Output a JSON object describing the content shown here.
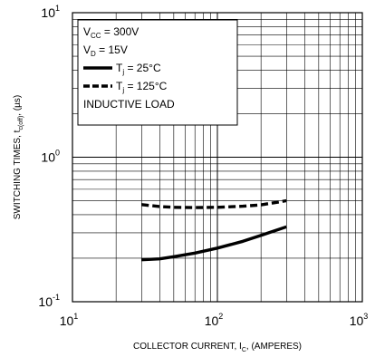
{
  "chart_data": {
    "type": "line",
    "x_scale": "log",
    "y_scale": "log",
    "xlim": [
      10,
      1000
    ],
    "ylim": [
      0.1,
      10
    ],
    "grid": true,
    "legend_placement": "top-left",
    "xlabel": {
      "main": "COLLECTOR CURRENT, I",
      "sub": "C",
      "suffix": ", (AMPERES)"
    },
    "ylabel": {
      "main": "SWITCHING TIMES, t",
      "sub": "c(off)",
      "suffix": ", (µs)"
    },
    "x_ticks": [
      {
        "value": 10,
        "base": "10",
        "exp": "1"
      },
      {
        "value": 100,
        "base": "10",
        "exp": "2"
      },
      {
        "value": 1000,
        "base": "10",
        "exp": "3"
      }
    ],
    "y_ticks": [
      {
        "value": 10,
        "base": "10",
        "exp": "1"
      },
      {
        "value": 1,
        "base": "10",
        "exp": "0"
      },
      {
        "value": 0.1,
        "base": "10",
        "exp": "-1"
      }
    ],
    "legend": {
      "conditions": [
        {
          "main": "V",
          "sub": "CC",
          "rest": " = 300V"
        },
        {
          "main": "V",
          "sub": "D",
          "rest": " = 15V"
        }
      ],
      "series": [
        {
          "main": "T",
          "sub": "j",
          "rest": " = 25°C",
          "style": "solid"
        },
        {
          "main": "T",
          "sub": "j",
          "rest": " = 125°C",
          "style": "dashed"
        }
      ],
      "note": "INDUCTIVE LOAD"
    },
    "series": [
      {
        "style": "solid",
        "color": "#000000",
        "x": [
          30,
          40,
          50,
          70,
          100,
          150,
          200,
          300
        ],
        "y": [
          0.195,
          0.198,
          0.205,
          0.217,
          0.235,
          0.262,
          0.288,
          0.33
        ]
      },
      {
        "style": "dashed",
        "color": "#000000",
        "x": [
          30,
          40,
          50,
          70,
          100,
          150,
          200,
          300
        ],
        "y": [
          0.47,
          0.455,
          0.45,
          0.448,
          0.45,
          0.458,
          0.468,
          0.5
        ]
      }
    ]
  }
}
